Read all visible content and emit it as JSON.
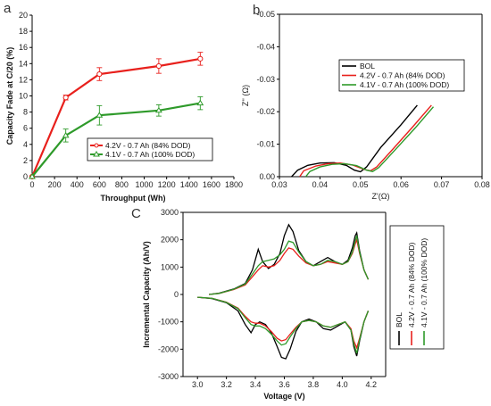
{
  "colors": {
    "black": "#000000",
    "red": "#e8201c",
    "green": "#2e9a2a"
  },
  "panels": {
    "a": {
      "label": "a"
    },
    "b": {
      "label": "b"
    },
    "c": {
      "label": "C"
    }
  },
  "chart_data": [
    {
      "panel": "a",
      "type": "line",
      "xlabel": "Throughput (Wh)",
      "ylabel": "Capacity Fade at C/20 (%)",
      "xlim": [
        0,
        1800
      ],
      "ylim": [
        0,
        20
      ],
      "xticks": [
        "0",
        "200",
        "400",
        "600",
        "800",
        "1000",
        "1200",
        "1400",
        "1600",
        "1800"
      ],
      "yticks": [
        "0",
        "2",
        "4",
        "6",
        "8",
        "10",
        "12",
        "14",
        "16",
        "18",
        "20"
      ],
      "legend_position": "lower-right",
      "series": [
        {
          "name": "4.2V - 0.7 Ah (84% DOD)",
          "color": "red",
          "x": [
            0,
            300,
            600,
            1130,
            1500
          ],
          "y": [
            0,
            9.8,
            12.7,
            13.7,
            14.6
          ],
          "err": [
            0,
            0.3,
            0.8,
            0.9,
            0.8
          ]
        },
        {
          "name": "4.1V - 0.7 Ah (100% DOD)",
          "color": "green",
          "x": [
            0,
            300,
            600,
            1130,
            1500
          ],
          "y": [
            0,
            5.1,
            7.6,
            8.2,
            9.1
          ],
          "err": [
            0,
            0.8,
            1.2,
            0.7,
            0.8
          ]
        }
      ]
    },
    {
      "panel": "b",
      "type": "line",
      "xlabel": "Z'(Ω)",
      "ylabel": "Z'' (Ω)",
      "xlim": [
        0.03,
        0.08
      ],
      "ylim": [
        0.0,
        -0.05
      ],
      "xticks": [
        "0.03",
        "0.04",
        "0.05",
        "0.06",
        "0.07",
        "0.08"
      ],
      "yticks": [
        "0.00",
        "-0.01",
        "-0.02",
        "-0.03",
        "-0.04",
        "-0.05"
      ],
      "legend_position": "top-left",
      "series": [
        {
          "name": "BOL",
          "color": "black",
          "x": [
            0.033,
            0.0345,
            0.037,
            0.04,
            0.0435,
            0.0465,
            0.0485,
            0.05,
            0.0515,
            0.055,
            0.06,
            0.064
          ],
          "y": [
            0.0,
            -0.002,
            -0.0035,
            -0.0042,
            -0.0043,
            -0.0035,
            -0.002,
            -0.0015,
            -0.003,
            -0.009,
            -0.016,
            -0.022
          ]
        },
        {
          "name": "4.2V - 0.7 Ah (84% DOD)",
          "color": "red",
          "x": [
            0.035,
            0.036,
            0.039,
            0.042,
            0.045,
            0.048,
            0.051,
            0.0525,
            0.054,
            0.058,
            0.063,
            0.0675
          ],
          "y": [
            0.0,
            -0.0018,
            -0.0033,
            -0.004,
            -0.0042,
            -0.0036,
            -0.0022,
            -0.0018,
            -0.003,
            -0.0085,
            -0.0155,
            -0.022
          ]
        },
        {
          "name": "4.1V - 0.7 Ah (100% DOD)",
          "color": "green",
          "x": [
            0.0365,
            0.0375,
            0.04,
            0.043,
            0.046,
            0.049,
            0.0515,
            0.053,
            0.0545,
            0.0585,
            0.0635,
            0.068
          ],
          "y": [
            0.0,
            -0.0016,
            -0.003,
            -0.0038,
            -0.004,
            -0.0034,
            -0.002,
            -0.0016,
            -0.0028,
            -0.0082,
            -0.015,
            -0.0215
          ]
        }
      ]
    },
    {
      "panel": "c",
      "type": "line",
      "xlabel": "Voltage (V)",
      "ylabel": "Incremental Capacity (Ah/V)",
      "xlim": [
        2.9,
        4.3
      ],
      "ylim": [
        -3000,
        3000
      ],
      "xticks": [
        "3.0",
        "3.2",
        "3.4",
        "3.6",
        "3.8",
        "4.0",
        "4.2"
      ],
      "yticks": [
        "-3000",
        "-2000",
        "-1000",
        "0",
        "1000",
        "2000",
        "3000"
      ],
      "legend_position": "right (rotated)",
      "series": [
        {
          "name": "BOL",
          "color": "black",
          "charge_x": [
            3.08,
            3.15,
            3.25,
            3.33,
            3.38,
            3.42,
            3.45,
            3.49,
            3.53,
            3.57,
            3.6,
            3.63,
            3.66,
            3.7,
            3.75,
            3.8,
            3.85,
            3.9,
            3.95,
            4.0,
            4.04,
            4.07,
            4.09,
            4.1,
            4.12,
            4.15,
            4.18
          ],
          "charge_y": [
            0,
            50,
            200,
            400,
            900,
            1650,
            1200,
            950,
            1100,
            1500,
            2150,
            2550,
            2300,
            1600,
            1200,
            1050,
            1200,
            1350,
            1200,
            1100,
            1250,
            1700,
            2150,
            2250,
            1600,
            900,
            550
          ],
          "discharge_x": [
            3.0,
            3.1,
            3.2,
            3.28,
            3.33,
            3.37,
            3.4,
            3.43,
            3.47,
            3.51,
            3.55,
            3.58,
            3.61,
            3.64,
            3.68,
            3.72,
            3.77,
            3.82,
            3.87,
            3.92,
            3.97,
            4.02,
            4.06,
            4.08,
            4.1,
            4.12,
            4.15,
            4.18
          ],
          "discharge_y": [
            -100,
            -150,
            -300,
            -600,
            -1100,
            -1400,
            -1100,
            -1000,
            -1100,
            -1400,
            -1900,
            -2300,
            -2350,
            -2000,
            -1350,
            -1000,
            -900,
            -1000,
            -1250,
            -1300,
            -1150,
            -1000,
            -1300,
            -1900,
            -2250,
            -1700,
            -1000,
            -600
          ]
        },
        {
          "name": "4.2V - 0.7 Ah (84% DOD)",
          "color": "red",
          "charge_x": [
            3.08,
            3.15,
            3.25,
            3.33,
            3.38,
            3.42,
            3.45,
            3.49,
            3.53,
            3.57,
            3.6,
            3.63,
            3.66,
            3.7,
            3.75,
            3.8,
            3.85,
            3.9,
            3.95,
            4.0,
            4.04,
            4.07,
            4.09,
            4.1,
            4.12,
            4.15,
            4.18
          ],
          "charge_y": [
            0,
            40,
            180,
            350,
            650,
            900,
            1050,
            1000,
            1050,
            1250,
            1500,
            1700,
            1650,
            1400,
            1150,
            1050,
            1100,
            1200,
            1150,
            1100,
            1200,
            1500,
            1850,
            2000,
            1500,
            900,
            550
          ],
          "discharge_x": [
            3.0,
            3.1,
            3.2,
            3.28,
            3.33,
            3.37,
            3.4,
            3.43,
            3.47,
            3.51,
            3.55,
            3.58,
            3.61,
            3.64,
            3.68,
            3.72,
            3.77,
            3.82,
            3.87,
            3.92,
            3.97,
            4.02,
            4.06,
            4.08,
            4.1,
            4.12,
            4.15,
            4.18
          ],
          "discharge_y": [
            -100,
            -140,
            -280,
            -500,
            -800,
            -1000,
            -1050,
            -1050,
            -1150,
            -1350,
            -1600,
            -1700,
            -1650,
            -1450,
            -1200,
            -1000,
            -950,
            -1000,
            -1150,
            -1200,
            -1100,
            -1000,
            -1250,
            -1700,
            -1950,
            -1600,
            -1000,
            -600
          ]
        },
        {
          "name": "4.1V - 0.7 Ah (100% DOD)",
          "color": "green",
          "charge_x": [
            3.08,
            3.15,
            3.25,
            3.33,
            3.38,
            3.42,
            3.45,
            3.49,
            3.53,
            3.57,
            3.6,
            3.63,
            3.66,
            3.7,
            3.75,
            3.8,
            3.85,
            3.9,
            3.95,
            4.0,
            4.04,
            4.07,
            4.09,
            4.1,
            4.12,
            4.15,
            4.18
          ],
          "charge_y": [
            0,
            40,
            190,
            380,
            750,
            1050,
            1200,
            1250,
            1300,
            1450,
            1650,
            1950,
            1900,
            1550,
            1200,
            1050,
            1100,
            1250,
            1200,
            1100,
            1200,
            1550,
            1950,
            2150,
            1550,
            900,
            550
          ],
          "discharge_x": [
            3.0,
            3.1,
            3.2,
            3.28,
            3.33,
            3.37,
            3.4,
            3.43,
            3.47,
            3.51,
            3.55,
            3.58,
            3.61,
            3.64,
            3.68,
            3.72,
            3.77,
            3.82,
            3.87,
            3.92,
            3.97,
            4.02,
            4.06,
            4.08,
            4.1,
            4.12,
            4.15,
            4.18
          ],
          "discharge_y": [
            -100,
            -140,
            -290,
            -520,
            -850,
            -1100,
            -1150,
            -1150,
            -1250,
            -1450,
            -1700,
            -1850,
            -1800,
            -1550,
            -1250,
            -1000,
            -950,
            -1000,
            -1150,
            -1200,
            -1100,
            -1000,
            -1300,
            -1800,
            -2150,
            -1650,
            -1000,
            -600
          ]
        }
      ]
    }
  ]
}
